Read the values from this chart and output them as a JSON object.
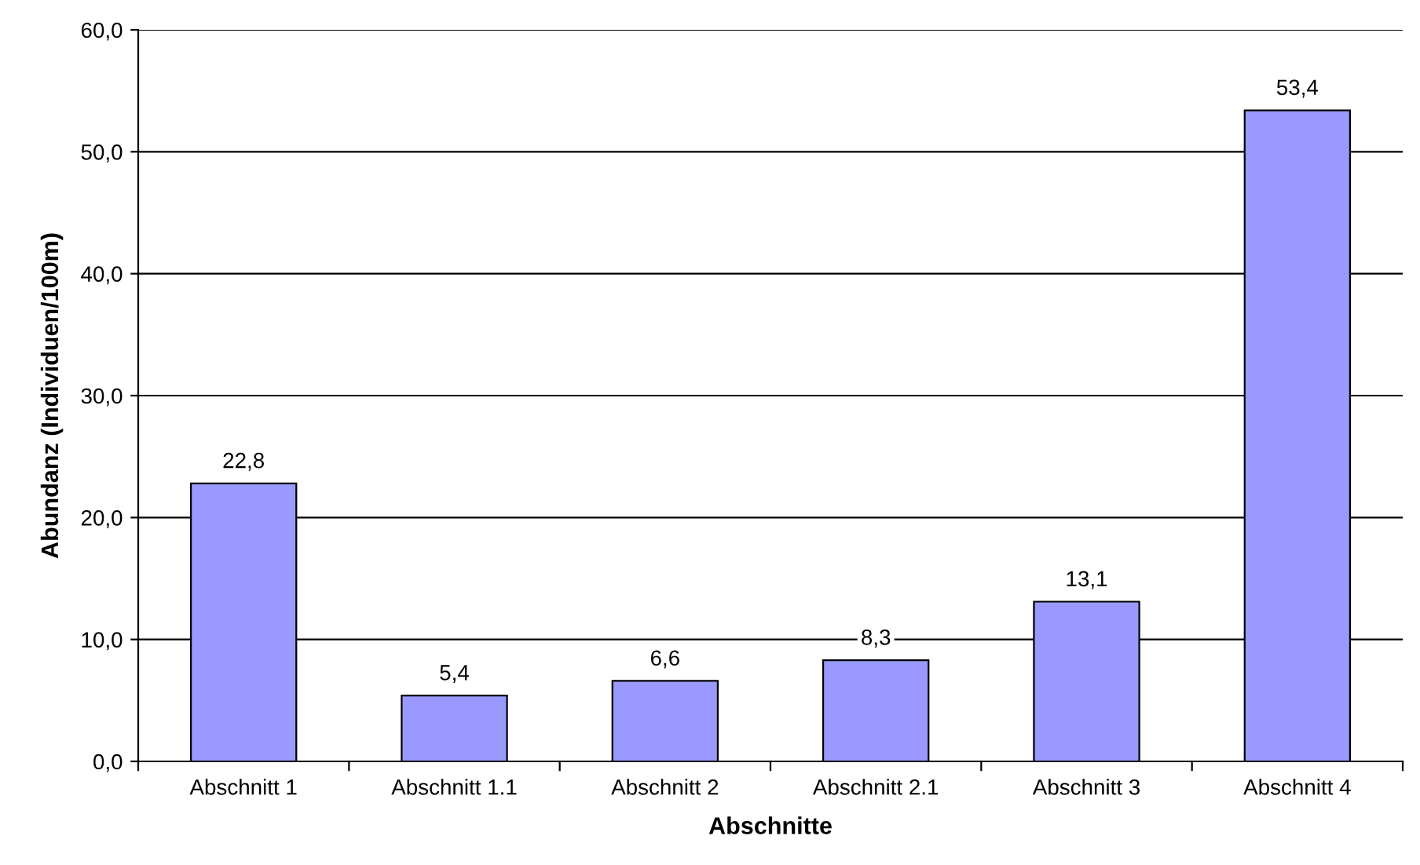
{
  "chart_data": {
    "type": "bar",
    "xlabel": "Abschnitte",
    "ylabel": "Abundanz (Individuen/100m)",
    "categories": [
      "Abschnitt 1",
      "Abschnitt 1.1",
      "Abschnitt 2",
      "Abschnitt 2.1",
      "Abschnitt 3",
      "Abschnitt 4"
    ],
    "values": [
      22.8,
      5.4,
      6.6,
      8.3,
      13.1,
      53.4
    ],
    "value_labels": [
      "22,8",
      "5,4",
      "6,6",
      "8,3",
      "13,1",
      "53,4"
    ],
    "color": "#9999ff",
    "ylim": [
      0,
      60
    ],
    "yticks": [
      {
        "value": 0,
        "label": "0,0"
      },
      {
        "value": 10,
        "label": "10,0"
      },
      {
        "value": 20,
        "label": "20,0"
      },
      {
        "value": 30,
        "label": "30,0"
      },
      {
        "value": 40,
        "label": "40,0"
      },
      {
        "value": 50,
        "label": "50,0"
      },
      {
        "value": 60,
        "label": "60,0"
      }
    ],
    "grid": "y",
    "legend": false
  }
}
